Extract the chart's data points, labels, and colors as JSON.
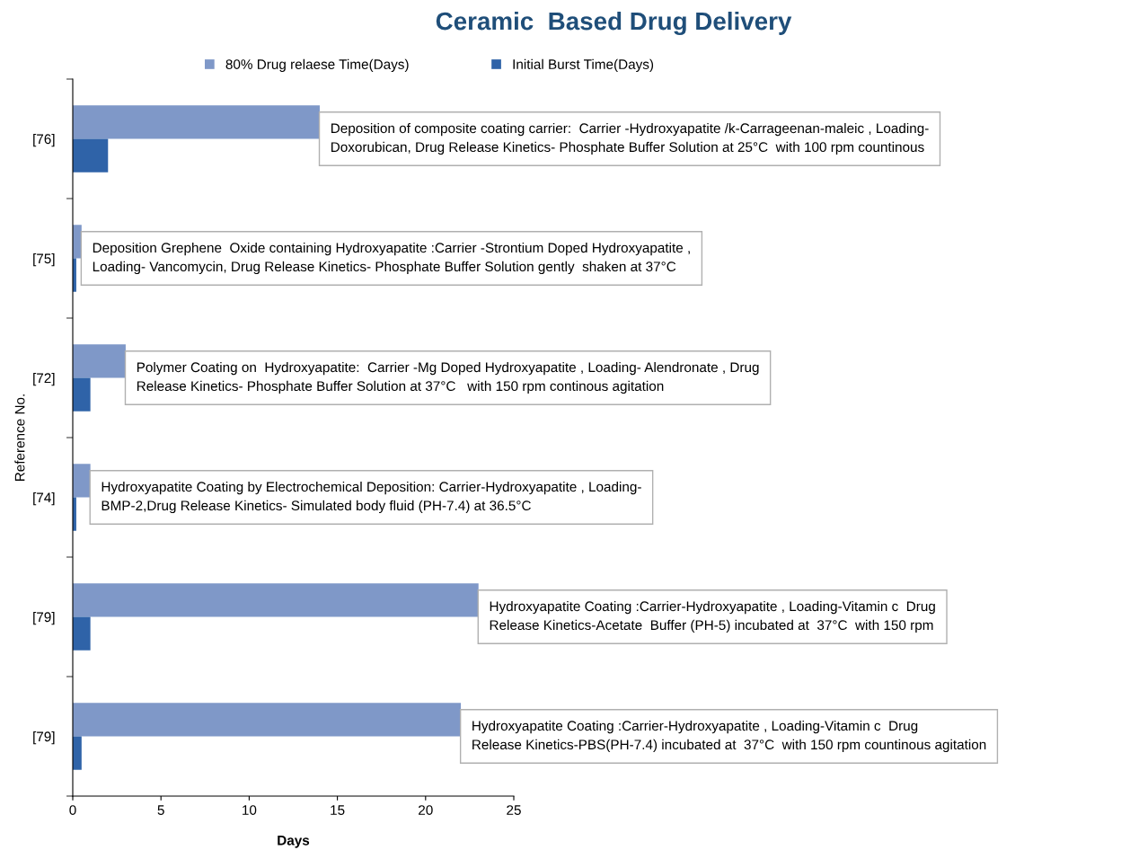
{
  "chart_data": {
    "type": "bar",
    "orientation": "horizontal",
    "title": "Ceramic  Based Drug Delivery",
    "xlabel": "Days",
    "ylabel": "Reference No.",
    "categories": [
      "[76]",
      "[75]",
      "[72]",
      "[74]",
      "[79]",
      "[79]"
    ],
    "series": [
      {
        "name": "80% Drug relaese Time(Days)",
        "color": "#7f98c8",
        "values": [
          14,
          0.5,
          3,
          1,
          23,
          22
        ]
      },
      {
        "name": "Initial Burst Time(Days)",
        "color": "#2f63a8",
        "values": [
          2,
          0.2,
          1,
          0.2,
          1,
          0.5
        ]
      }
    ],
    "xlim": [
      0,
      25
    ],
    "xticks": [
      0,
      5,
      10,
      15,
      20,
      25
    ],
    "grid": false,
    "legend": "top",
    "annotations": [
      "Deposition of composite coating carrier:  Carrier -Hydroxyapatite /k-Carrageenan-maleic , Loading-\nDoxorubican, Drug Release Kinetics- Phosphate Buffer Solution at 25°C  with 100 rpm countinous",
      "Deposition Grephene  Oxide containing Hydroxyapatite :Carrier -Strontium Doped Hydroxyapatite ,\nLoading- Vancomycin, Drug Release Kinetics- Phosphate Buffer Solution gently  shaken at 37°C",
      "Polymer Coating on  Hydroxyapatite:  Carrier -Mg Doped Hydroxyapatite , Loading- Alendronate , Drug\nRelease Kinetics- Phosphate Buffer Solution at 37°C   with 150 rpm continous agitation",
      "Hydroxyapatite Coating by Electrochemical Deposition: Carrier-Hydroxyapatite , Loading-\nBMP-2,Drug Release Kinetics- Simulated body fluid (PH-7.4) at 36.5°C",
      "Hydroxyapatite Coating :Carrier-Hydroxyapatite , Loading-Vitamin c  Drug\nRelease Kinetics-Acetate  Buffer (PH-5) incubated at  37°C  with 150 rpm",
      "Hydroxyapatite Coating :Carrier-Hydroxyapatite , Loading-Vitamin c  Drug\nRelease Kinetics-PBS(PH-7.4) incubated at  37°C  with 150 rpm countinous agitation"
    ]
  }
}
